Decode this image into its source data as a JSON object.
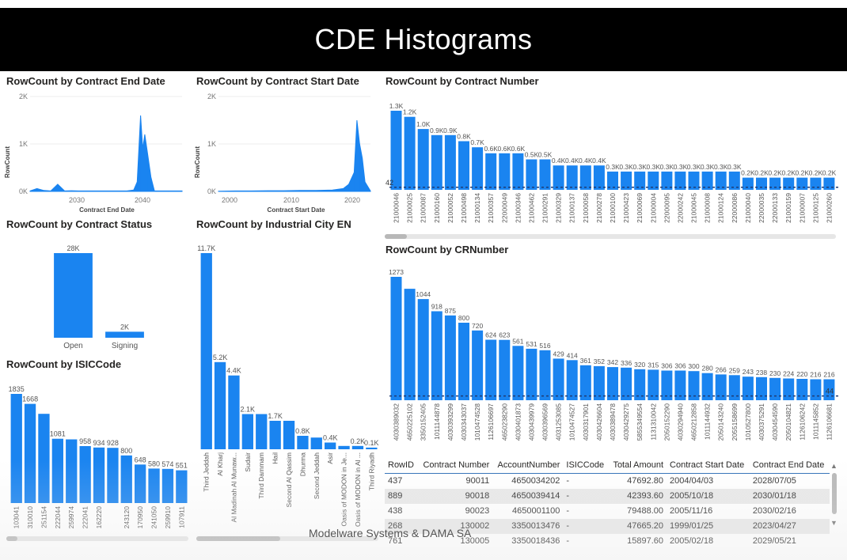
{
  "banner_title": "CDE Histograms",
  "footer_text": "Modelware Systems & DAMA SA",
  "colors": {
    "bar": "#1a84f0",
    "axis": "#666666",
    "refline": "#1f3b73",
    "banner_bg": "#000000"
  },
  "visuals": {
    "end_date": {
      "title": "RowCount by Contract End Date",
      "ylabel": "RowCount",
      "xlabel": "Contract End Date",
      "yticks": [
        "2K",
        "1K",
        "0K"
      ],
      "xticks": [
        "2030",
        "2040"
      ]
    },
    "start_date": {
      "title": "RowCount by Contract Start Date",
      "ylabel": "RowCount",
      "xlabel": "Contract Start Date",
      "yticks": [
        "2K",
        "1K",
        "0K"
      ],
      "xticks": [
        "2000",
        "2010",
        "2020"
      ]
    },
    "contract_status": {
      "title": "RowCount by Contract Status"
    },
    "industrial_city": {
      "title": "RowCount by Industrial City EN"
    },
    "isic": {
      "title": "RowCount by ISICCode"
    },
    "contract_number": {
      "title": "RowCount by Contract Number",
      "ref_label": "42"
    },
    "crnumber": {
      "title": "RowCount by CRNumber",
      "ref_label": "44"
    }
  },
  "chart_data": [
    {
      "type": "area",
      "id": "end_date",
      "title": "RowCount by Contract End Date",
      "xlabel": "Contract End Date",
      "ylabel": "RowCount",
      "ylim": [
        0,
        2000
      ],
      "xlim": [
        2024,
        2046
      ],
      "x": [
        2024,
        2025,
        2026,
        2027,
        2028,
        2029,
        2030,
        2031,
        2032,
        2033,
        2034,
        2035,
        2036,
        2037,
        2038,
        2039,
        2039.5,
        2040,
        2040.3,
        2040.6,
        2041,
        2041.5,
        2042,
        2043,
        2044,
        2045,
        2046
      ],
      "y": [
        10,
        60,
        20,
        10,
        150,
        10,
        15,
        10,
        10,
        10,
        10,
        10,
        10,
        10,
        10,
        30,
        200,
        1600,
        900,
        1200,
        800,
        300,
        10,
        10,
        10,
        10,
        10
      ]
    },
    {
      "type": "area",
      "id": "start_date",
      "title": "RowCount by Contract Start Date",
      "xlabel": "Contract Start Date",
      "ylabel": "RowCount",
      "ylim": [
        0,
        2000
      ],
      "xlim": [
        1996,
        2024
      ],
      "x": [
        1996,
        1999,
        2002,
        2005,
        2008,
        2011,
        2014,
        2017,
        2019,
        2020,
        2021,
        2021.5,
        2022,
        2022.5,
        2023,
        2024
      ],
      "y": [
        5,
        10,
        10,
        15,
        15,
        20,
        20,
        30,
        60,
        150,
        400,
        1500,
        1000,
        700,
        200,
        10
      ]
    },
    {
      "type": "bar",
      "id": "contract_status",
      "title": "RowCount by Contract Status",
      "categories": [
        "Open",
        "Signing"
      ],
      "values": [
        28000,
        2000
      ],
      "labels": [
        "28K",
        "2K"
      ]
    },
    {
      "type": "bar",
      "id": "industrial_city",
      "title": "RowCount by Industrial City EN",
      "categories": [
        "Third Jeddah",
        "Al Kharj",
        "Al Madinah Al Munaw...",
        "Sudair",
        "Third Dammam",
        "Hail",
        "Second Al Qassim",
        "Dhurma",
        "Second Jeddah",
        "Asir",
        "Oasis of MODON in Je...",
        "Oasis of MODON in Al ...",
        "Third Riyadh"
      ],
      "values": [
        11700,
        5200,
        4400,
        2100,
        2100,
        1700,
        1700,
        800,
        700,
        400,
        200,
        200,
        100
      ],
      "labels": [
        "11.7K",
        "5.2K",
        "4.4K",
        "2.1K",
        "",
        "1.7K",
        "",
        "0.8K",
        "",
        "0.4K",
        "",
        "0.2K",
        "0.1K"
      ]
    },
    {
      "type": "bar",
      "id": "isic",
      "title": "RowCount by ISICCode",
      "categories": [
        "103041",
        "310010",
        "251154",
        "222044",
        "259974",
        "222041",
        "162220",
        "",
        "243120",
        "170950",
        "241050",
        "259910",
        "107911"
      ],
      "values": [
        1835,
        1668,
        1500,
        1081,
        1070,
        958,
        934,
        928,
        800,
        648,
        580,
        574,
        551
      ],
      "labels": [
        "1835",
        "1668",
        "",
        "1081",
        "",
        "958",
        "934",
        "928",
        "800",
        "648",
        "580",
        "574",
        "551"
      ]
    },
    {
      "type": "bar",
      "id": "contract_number",
      "title": "RowCount by Contract Number",
      "reference_line": 42,
      "categories": [
        "21000046",
        "21000025",
        "21000087",
        "21000160",
        "21000052",
        "21000498",
        "21000134",
        "21000357",
        "22000049",
        "21000346",
        "21000462",
        "21000291",
        "21000329",
        "21000137",
        "21000058",
        "21000278",
        "21000100",
        "21000423",
        "21000069",
        "21000004",
        "22000095",
        "22000242",
        "21000045",
        "21000008",
        "21000124",
        "22000086",
        "21000040",
        "22000035",
        "22000133",
        "21000159",
        "21000007",
        "21000125",
        "21000260"
      ],
      "values": [
        1300,
        1200,
        1000,
        900,
        900,
        800,
        700,
        600,
        600,
        600,
        500,
        500,
        400,
        400,
        400,
        400,
        300,
        300,
        300,
        300,
        300,
        300,
        300,
        300,
        300,
        300,
        200,
        200,
        200,
        200,
        200,
        200,
        200
      ],
      "labels": [
        "1.3K",
        "1.2K",
        "1.0K",
        "0.9K",
        "0.9K",
        "0.8K",
        "0.7K",
        "0.6K",
        "0.6K",
        "0.6K",
        "0.5K",
        "0.5K",
        "0.4K",
        "0.4K",
        "0.4K",
        "0.4K",
        "0.3K",
        "0.3K",
        "0.3K",
        "0.3K",
        "0.3K",
        "0.3K",
        "0.3K",
        "0.3K",
        "0.3K",
        "0.3K",
        "0.2K",
        "0.2K",
        "0.2K",
        "0.2K",
        "0.2K",
        "0.2K",
        "0.2K"
      ]
    },
    {
      "type": "bar",
      "id": "crnumber",
      "title": "RowCount by CRNumber",
      "reference_line": 44,
      "categories": [
        "4030389032",
        "4650225102",
        "3350152405",
        "1011144878",
        "4030393299",
        "4030343037",
        "1010474528",
        "1126106697",
        "4650238290",
        "4030401873",
        "4030439979",
        "4030396569",
        "4031253085",
        "1010474527",
        "4030317901",
        "4030426604",
        "4030389478",
        "4030429275",
        "5855349554",
        "1131310042",
        "2050152290",
        "4030294940",
        "4650212858",
        "1011144932",
        "2050143240",
        "2055158699",
        "1010527800",
        "4030375291",
        "4030454590",
        "2050104821",
        "1126106242",
        "1011145852",
        "1126106681"
      ],
      "values": [
        1273,
        1150,
        1044,
        918,
        875,
        800,
        720,
        624,
        623,
        561,
        531,
        516,
        429,
        414,
        361,
        352,
        342,
        336,
        320,
        315,
        306,
        306,
        300,
        280,
        266,
        259,
        243,
        238,
        230,
        224,
        220,
        216,
        216
      ],
      "labels": [
        "1273",
        "",
        "1044",
        "918",
        "875",
        "800",
        "720",
        "624",
        "623",
        "561",
        "531",
        "516",
        "429",
        "414",
        "361",
        "352",
        "342",
        "336",
        "320",
        "315",
        "306",
        "306",
        "300",
        "280",
        "266",
        "259",
        "243",
        "238",
        "230",
        "224",
        "220",
        "216",
        "216"
      ]
    }
  ],
  "table": {
    "headers": [
      "RowID",
      "Contract Number",
      "AccountNumber",
      "ISICCode",
      "Total Amount",
      "Contract Start Date",
      "Contract End Date"
    ],
    "rows": [
      [
        "437",
        "90011",
        "4650034202",
        "-",
        "47692.80",
        "2004/04/03",
        "2028/07/05"
      ],
      [
        "889",
        "90018",
        "4650039414",
        "-",
        "42393.60",
        "2005/10/18",
        "2030/01/18"
      ],
      [
        "438",
        "90023",
        "4650001100",
        "-",
        "79488.00",
        "2005/11/16",
        "2030/02/16"
      ],
      [
        "268",
        "130002",
        "3350013476",
        "-",
        "47665.20",
        "1999/01/25",
        "2023/04/27"
      ],
      [
        "761",
        "130005",
        "3350018436",
        "-",
        "15897.60",
        "2005/02/18",
        "2029/05/21"
      ]
    ]
  }
}
